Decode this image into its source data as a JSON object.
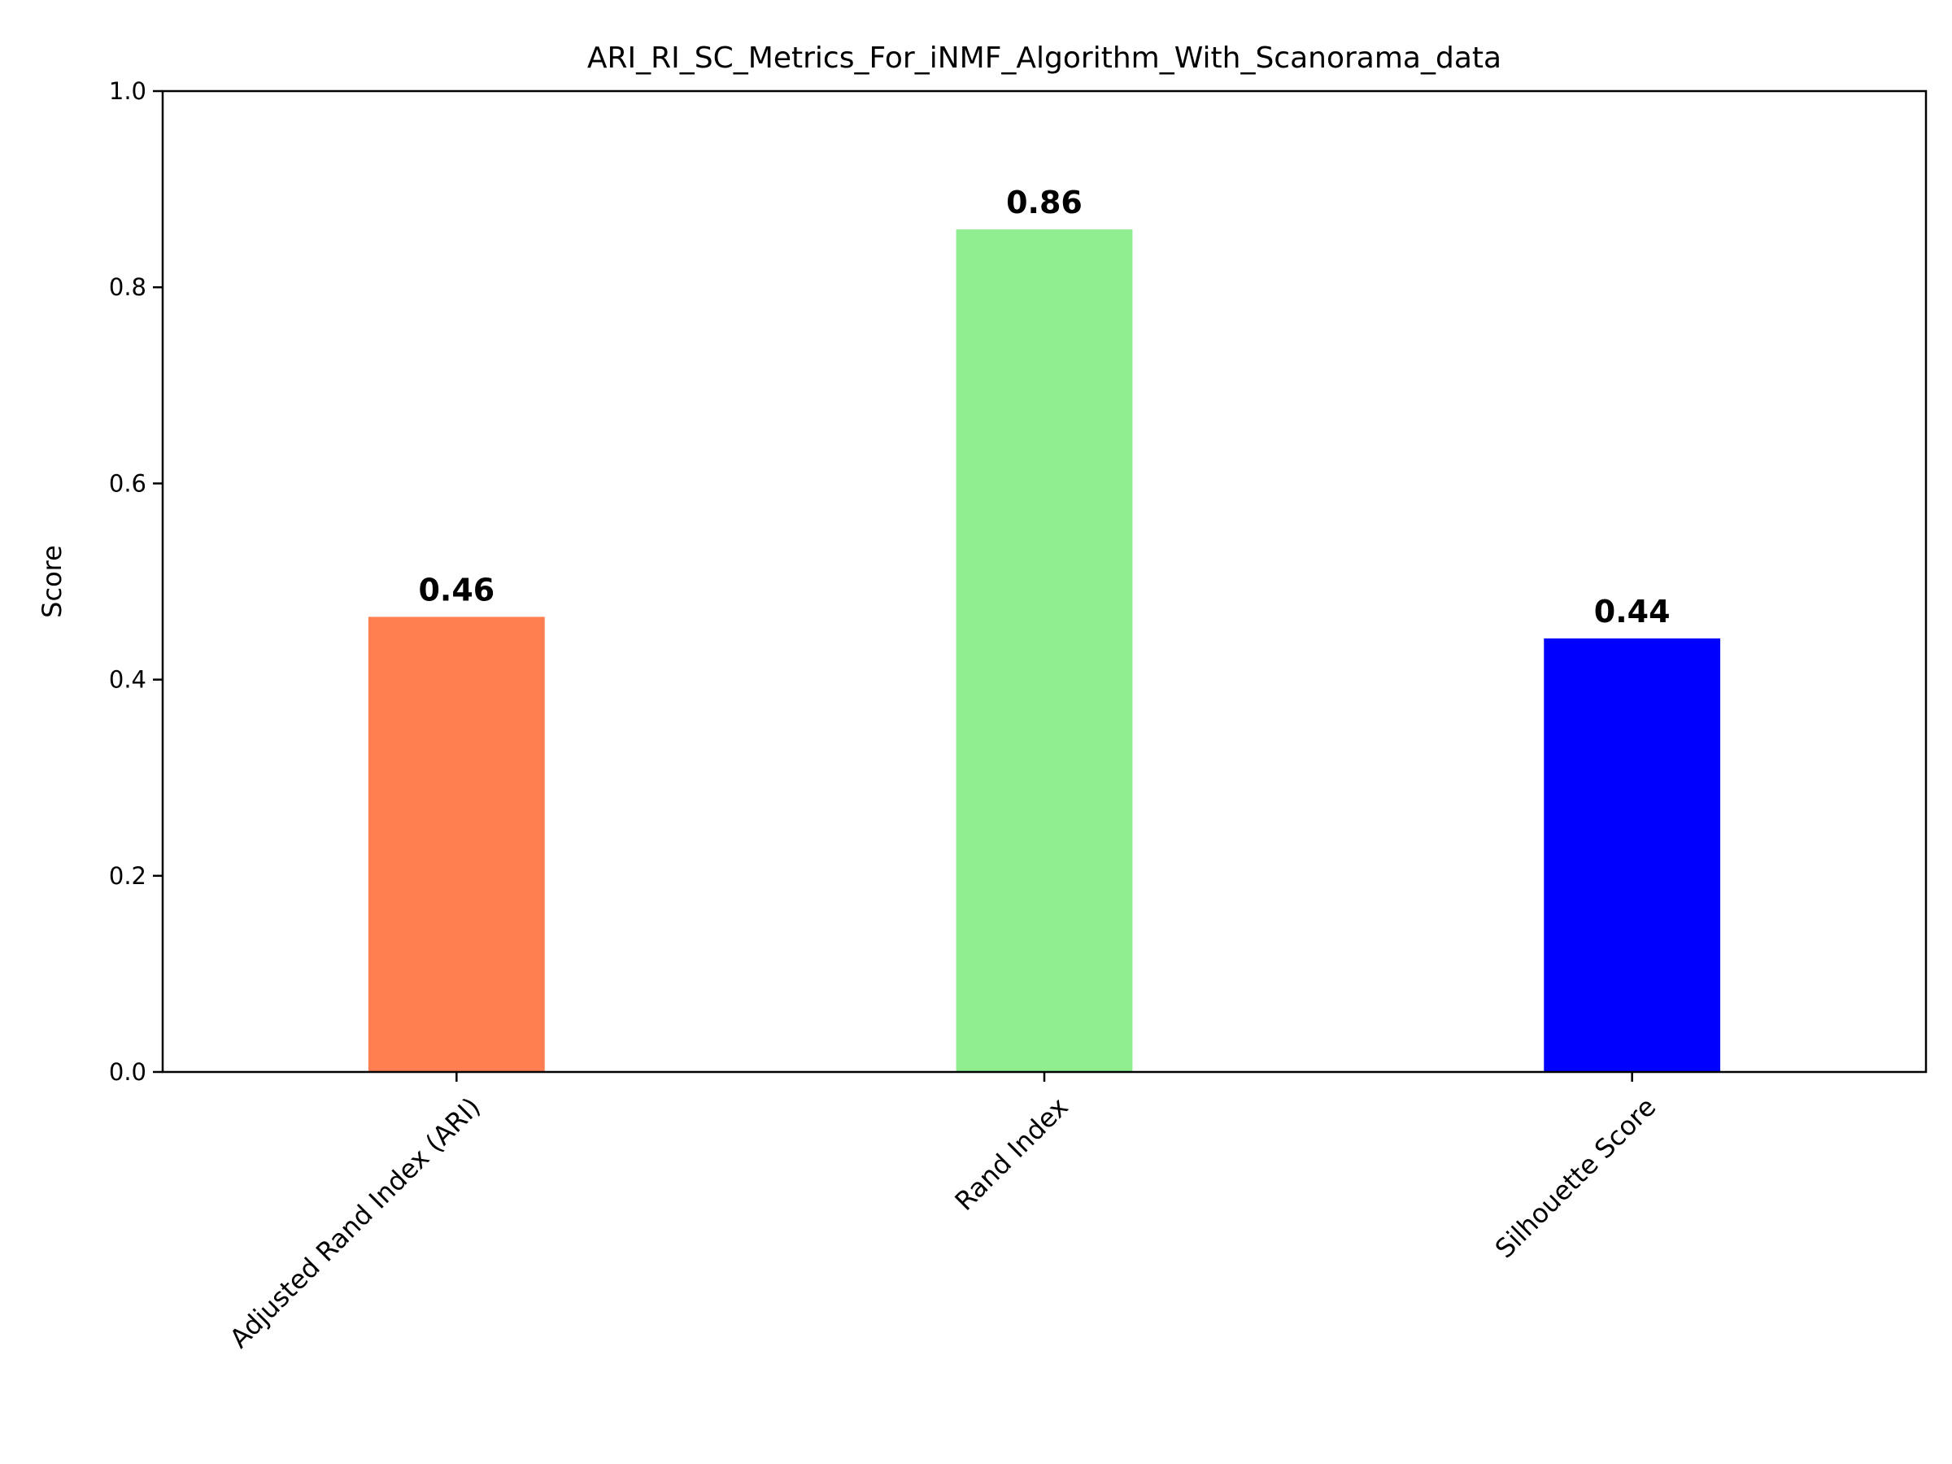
{
  "chart_data": {
    "type": "bar",
    "title": "ARI_RI_SC_Metrics_For_iNMF_Algorithm_With_Scanorama_data",
    "xlabel": "",
    "ylabel": "Score",
    "ylim": [
      0,
      1.0
    ],
    "yticks": [
      "0.0",
      "0.2",
      "0.4",
      "0.6",
      "0.8",
      "1.0"
    ],
    "grid": false,
    "categories": [
      "Adjusted Rand Index (ARI)",
      "Rand Index",
      "Silhouette Score"
    ],
    "values": [
      0.464,
      0.859,
      0.442
    ],
    "value_labels": [
      "0.46",
      "0.86",
      "0.44"
    ],
    "colors": [
      "#ff7f50",
      "#90ee90",
      "#0000ff"
    ]
  }
}
